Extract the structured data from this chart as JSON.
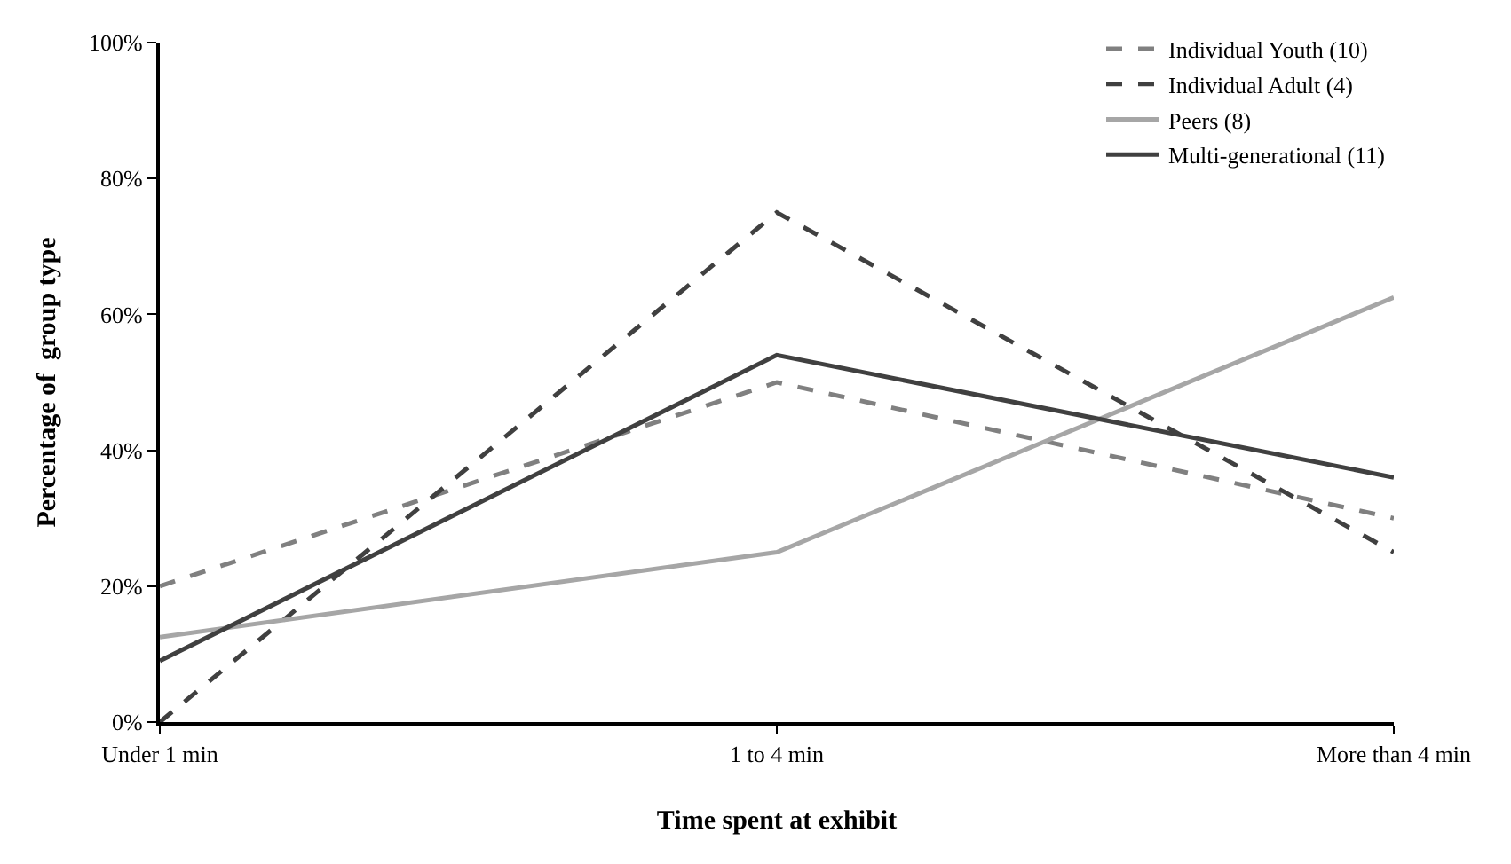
{
  "chart_data": {
    "type": "line",
    "xlabel": "Time spent at exhibit",
    "ylabel": "Percentage of  group type",
    "categories": [
      "Under 1 min",
      "1 to 4 min",
      "More than 4 min"
    ],
    "series": [
      {
        "name": "Individual Youth (10)",
        "color": "#808080",
        "line_style": "dashed",
        "values": [
          20,
          50,
          30
        ]
      },
      {
        "name": "Individual Adult (4)",
        "color": "#404040",
        "line_style": "dashed",
        "values": [
          0,
          75,
          25
        ]
      },
      {
        "name": "Peers (8)",
        "color": "#a6a6a6",
        "line_style": "solid",
        "values": [
          12.5,
          25,
          62.5
        ]
      },
      {
        "name": "Multi-generational (11)",
        "color": "#404040",
        "line_style": "solid",
        "values": [
          9,
          54,
          36
        ]
      }
    ],
    "ylim": [
      0,
      100
    ],
    "yticks": [
      {
        "value": 0,
        "label": "0%"
      },
      {
        "value": 20,
        "label": "20%"
      },
      {
        "value": 40,
        "label": "40%"
      },
      {
        "value": 60,
        "label": "60%"
      },
      {
        "value": 80,
        "label": "80%"
      },
      {
        "value": 100,
        "label": "100%"
      }
    ],
    "legend": "top right",
    "marker": "none"
  }
}
